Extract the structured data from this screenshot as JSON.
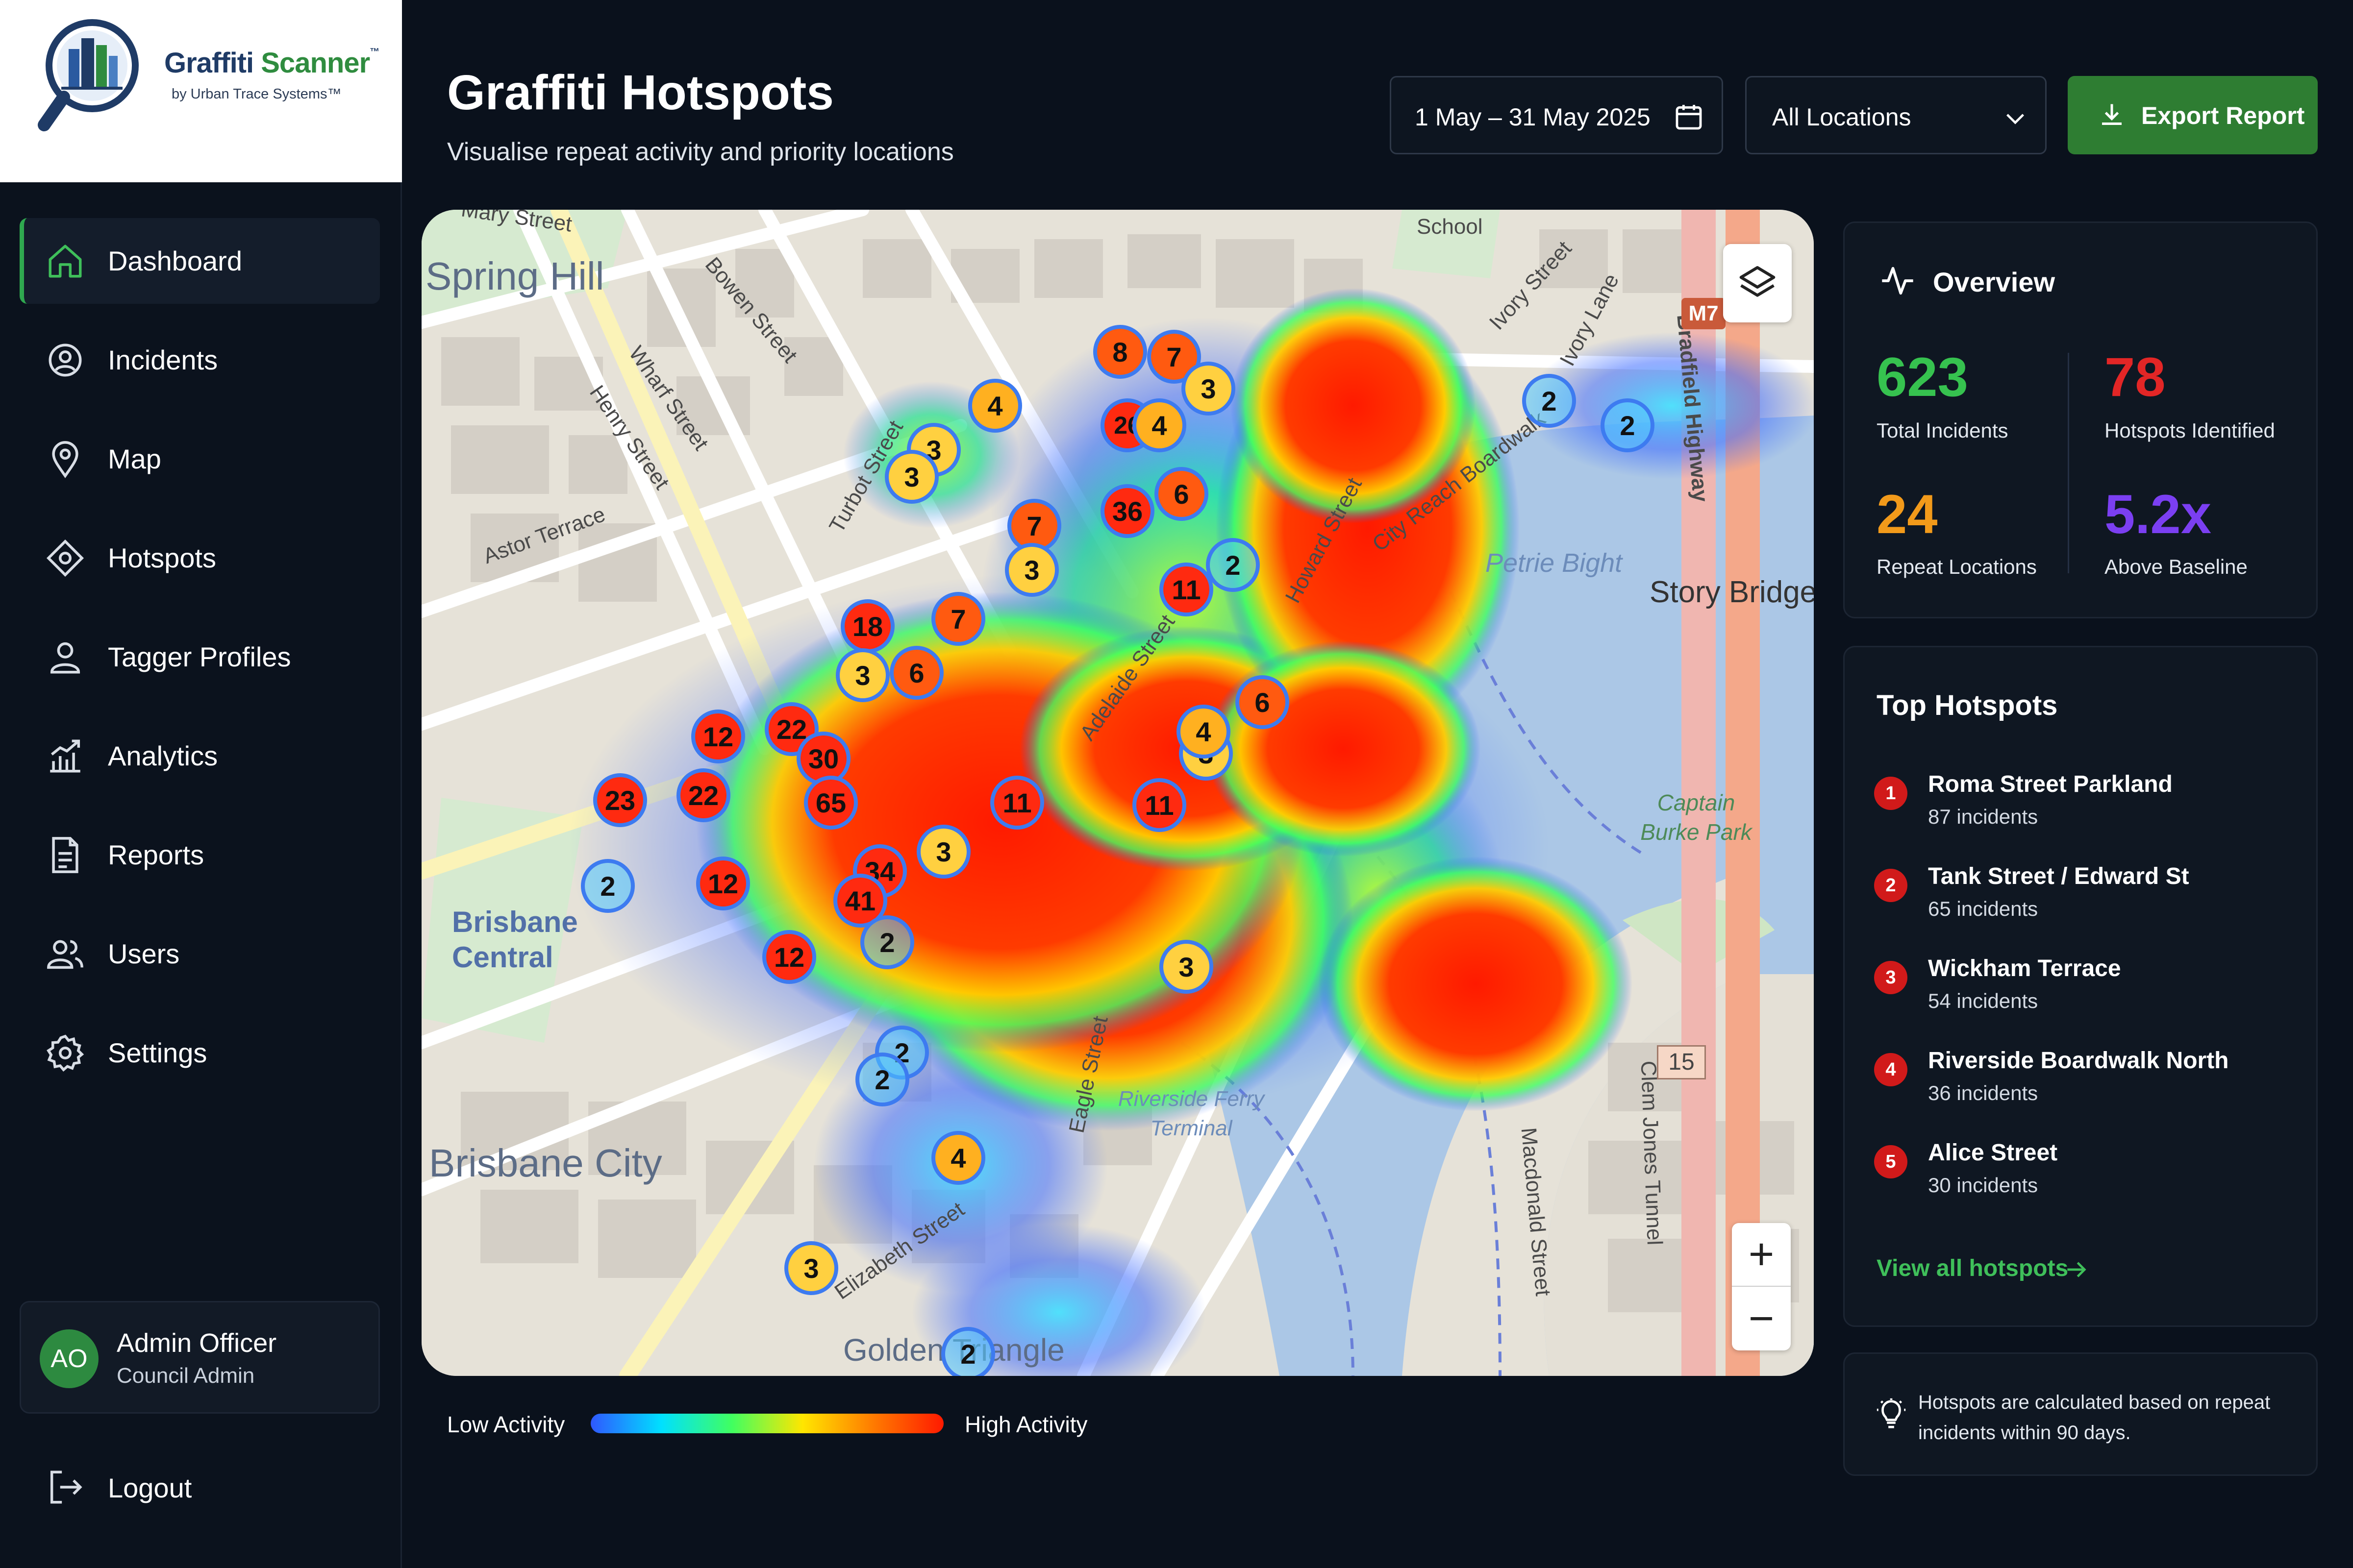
{
  "brand": {
    "name_part1": "Graffiti",
    "name_part2": "Scanner",
    "trademark": "™",
    "tagline": "by Urban Trace Systems™"
  },
  "sidebar": {
    "items": [
      {
        "label": "Dashboard",
        "icon": "home-icon",
        "active": true
      },
      {
        "label": "Incidents",
        "icon": "incident-icon",
        "active": false
      },
      {
        "label": "Map",
        "icon": "map-pin-icon",
        "active": false
      },
      {
        "label": "Hotspots",
        "icon": "hotspot-icon",
        "active": false
      },
      {
        "label": "Tagger Profiles",
        "icon": "user-icon",
        "active": false
      },
      {
        "label": "Analytics",
        "icon": "analytics-icon",
        "active": false
      },
      {
        "label": "Reports",
        "icon": "report-icon",
        "active": false
      },
      {
        "label": "Users",
        "icon": "users-icon",
        "active": false
      },
      {
        "label": "Settings",
        "icon": "gear-icon",
        "active": false
      }
    ],
    "user": {
      "initials": "AO",
      "name": "Admin Officer",
      "role": "Council Admin"
    },
    "logout_label": "Logout"
  },
  "header": {
    "title": "Graffiti Hotspots",
    "subtitle": "Visualise repeat activity and priority locations",
    "date_range": "1 May – 31 May 2025",
    "location_select": "All Locations",
    "export_label": "Export Report"
  },
  "map": {
    "area_labels": [
      "Spring Hill",
      "Brisbane Central",
      "Brisbane City",
      "Golden Triangle",
      "Story Bridge"
    ],
    "street_labels": [
      "Wharf Street",
      "Henry Street",
      "Bowen Street",
      "Astor Terrace",
      "Turbot Street",
      "Adelaide Street",
      "Eagle Street",
      "Elizabeth Street",
      "Howard Street",
      "Ivory Street",
      "Ivory Lane",
      "City Reach Boardwalk",
      "Bradfield Highway",
      "Clem Jones Tunnel",
      "Macdonald Street",
      "Mary Street",
      "School"
    ],
    "water_labels": [
      "Petrie Bight",
      "Riverside Ferry Terminal"
    ],
    "park_labels": [
      "Captain Burke Park"
    ],
    "road_badges": [
      "M7",
      "15"
    ],
    "clusters": [
      "8",
      "7",
      "3",
      "4",
      "26",
      "4",
      "3",
      "3",
      "36",
      "6",
      "7",
      "3",
      "2",
      "11",
      "18",
      "7",
      "3",
      "6",
      "6",
      "12",
      "22",
      "30",
      "23",
      "22",
      "65",
      "11",
      "11",
      "3",
      "4",
      "3",
      "2",
      "12",
      "34",
      "41",
      "2",
      "12",
      "3",
      "2",
      "2",
      "4",
      "3",
      "2",
      "2",
      "2"
    ],
    "zoom_in": "+",
    "zoom_out": "−"
  },
  "legend": {
    "low": "Low Activity",
    "high": "High Activity"
  },
  "overview": {
    "title": "Overview",
    "stats": [
      {
        "value": "623",
        "label": "Total Incidents",
        "color": "#36c24f"
      },
      {
        "value": "78",
        "label": "Hotspots Identified",
        "color": "#e32626"
      },
      {
        "value": "24",
        "label": "Repeat Locations",
        "color": "#f29a1a"
      },
      {
        "value": "5.2x",
        "label": "Above Baseline",
        "color": "#7b3ff2"
      }
    ]
  },
  "top_hotspots": {
    "title": "Top Hotspots",
    "items": [
      {
        "rank": "1",
        "name": "Roma Street Parkland",
        "count": "87 incidents"
      },
      {
        "rank": "2",
        "name": "Tank Street / Edward St",
        "count": "65 incidents"
      },
      {
        "rank": "3",
        "name": "Wickham Terrace",
        "count": "54 incidents"
      },
      {
        "rank": "4",
        "name": "Riverside Boardwalk North",
        "count": "36 incidents"
      },
      {
        "rank": "5",
        "name": "Alice Street",
        "count": "30 incidents"
      }
    ],
    "view_all": "View all hotspots"
  },
  "note": {
    "text": "Hotspots are calculated based on repeat incidents within 90 days."
  }
}
